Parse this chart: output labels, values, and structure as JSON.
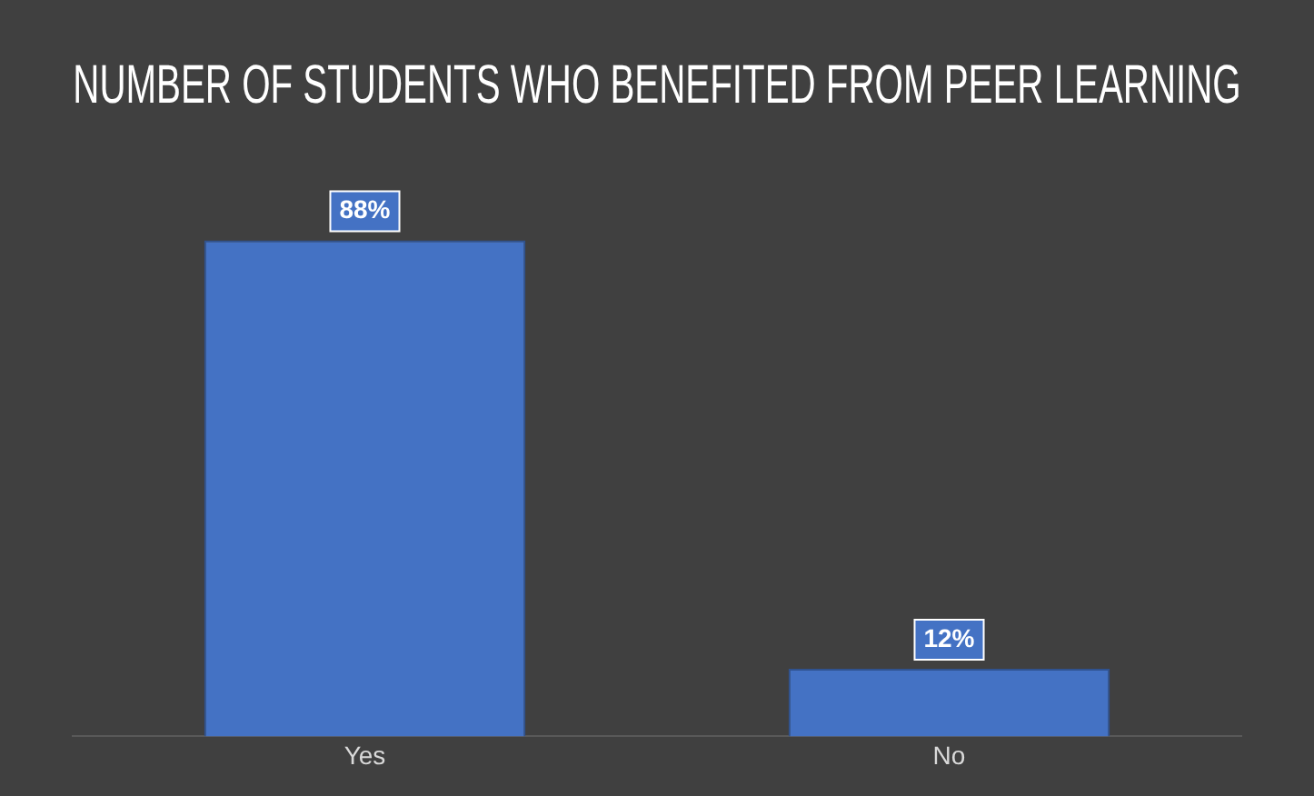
{
  "chart_data": {
    "type": "bar",
    "title": "NUMBER OF STUDENTS WHO BENEFITED FROM PEER LEARNING",
    "categories": [
      "Yes",
      "No"
    ],
    "values": [
      88,
      12
    ],
    "color": "#4472c4",
    "data_labels": true,
    "value_labels": [
      "88%",
      "12%"
    ],
    "grid": false,
    "legend": false,
    "tick_labels": "x"
  }
}
